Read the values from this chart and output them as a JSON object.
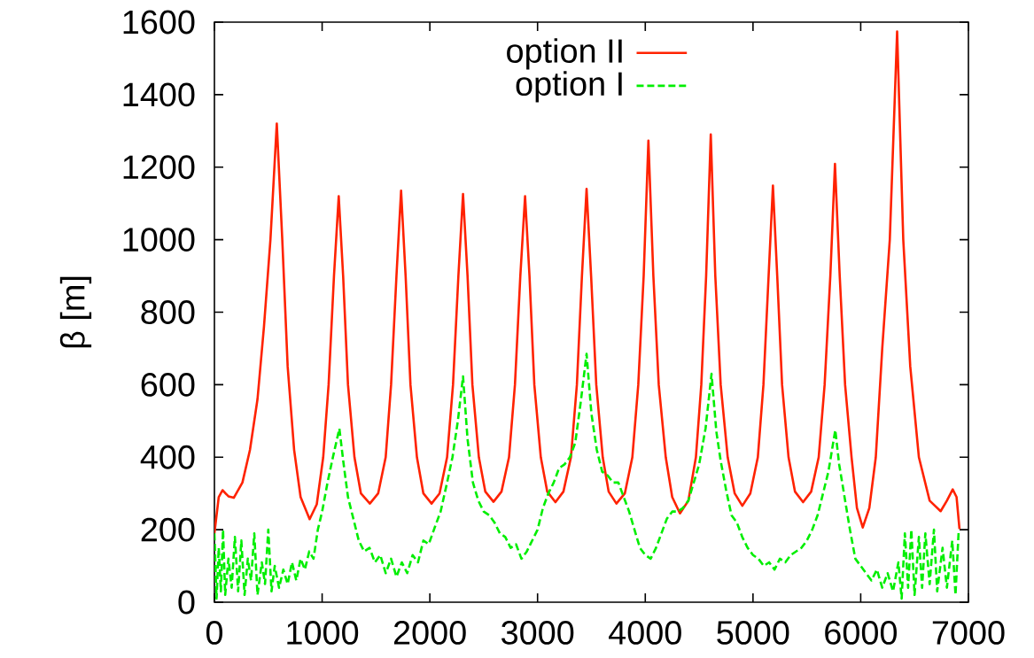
{
  "chart_data": {
    "type": "line",
    "ylabel": "β [m]",
    "xlim": [
      0,
      7000
    ],
    "ylim": [
      0,
      1600
    ],
    "xticks": [
      0,
      1000,
      2000,
      3000,
      4000,
      5000,
      6000,
      7000
    ],
    "yticks": [
      0,
      200,
      400,
      600,
      800,
      1000,
      1200,
      1400,
      1600
    ],
    "grid": false,
    "legend": "top",
    "series": [
      {
        "name": "option II",
        "color": "#ff2200",
        "line_style": "solid",
        "x": [
          0,
          40,
          75,
          130,
          180,
          260,
          330,
          400,
          460,
          520,
          579,
          630,
          680,
          740,
          800,
          884,
          950,
          1010,
          1060,
          1110,
          1154,
          1195,
          1240,
          1300,
          1360,
          1443,
          1520,
          1590,
          1640,
          1690,
          1733,
          1775,
          1820,
          1880,
          1940,
          2016,
          2090,
          2160,
          2215,
          2265,
          2308,
          2350,
          2395,
          2455,
          2515,
          2591,
          2665,
          2735,
          2790,
          2840,
          2884,
          2925,
          2970,
          3030,
          3090,
          3166,
          3240,
          3310,
          3365,
          3412,
          3455,
          3497,
          3545,
          3605,
          3660,
          3732,
          3810,
          3880,
          3935,
          3985,
          4029,
          4075,
          4125,
          4190,
          4250,
          4322,
          4400,
          4470,
          4520,
          4565,
          4608,
          4650,
          4700,
          4765,
          4830,
          4901,
          4975,
          5045,
          5097,
          5145,
          5185,
          5225,
          5270,
          5330,
          5390,
          5465,
          5540,
          5610,
          5665,
          5718,
          5761,
          5805,
          5855,
          5915,
          5965,
          6019,
          6080,
          6140,
          6200,
          6270,
          6338,
          6395,
          6460,
          6540,
          6640,
          6742,
          6800,
          6854,
          6890,
          6917
        ],
        "values": [
          190,
          290,
          309,
          292,
          288,
          330,
          420,
          560,
          760,
          1000,
          1320,
          1000,
          650,
          420,
          290,
          229,
          270,
          400,
          600,
          900,
          1120,
          900,
          600,
          400,
          300,
          272,
          300,
          400,
          600,
          900,
          1135,
          900,
          600,
          400,
          300,
          272,
          300,
          400,
          600,
          900,
          1126,
          900,
          600,
          400,
          305,
          277,
          305,
          400,
          600,
          900,
          1120,
          900,
          600,
          400,
          305,
          276,
          305,
          400,
          600,
          900,
          1140,
          900,
          600,
          400,
          305,
          272,
          300,
          400,
          600,
          900,
          1273,
          900,
          600,
          400,
          290,
          245,
          280,
          400,
          600,
          900,
          1290,
          900,
          600,
          400,
          300,
          266,
          300,
          400,
          600,
          900,
          1149,
          900,
          600,
          400,
          305,
          276,
          305,
          400,
          600,
          900,
          1209,
          900,
          600,
          400,
          260,
          206,
          260,
          400,
          700,
          1000,
          1574,
          1000,
          650,
          400,
          280,
          251,
          280,
          311,
          290,
          202
        ]
      },
      {
        "name": "option I",
        "color": "#00ee00",
        "line_style": "dashed",
        "x": [
          0,
          20,
          40,
          60,
          80,
          100,
          130,
          160,
          190,
          220,
          250,
          280,
          310,
          340,
          370,
          400,
          440,
          470,
          500,
          530,
          560,
          600,
          640,
          680,
          720,
          760,
          800,
          840,
          880,
          920,
          960,
          1000,
          1050,
          1100,
          1160,
          1200,
          1240,
          1290,
          1340,
          1390,
          1440,
          1490,
          1540,
          1590,
          1640,
          1690,
          1740,
          1790,
          1840,
          1890,
          1940,
          1990,
          2050,
          2100,
          2160,
          2210,
          2260,
          2308,
          2350,
          2400,
          2450,
          2500,
          2550,
          2600,
          2650,
          2700,
          2750,
          2800,
          2850,
          2900,
          2950,
          3000,
          3050,
          3100,
          3150,
          3200,
          3250,
          3300,
          3350,
          3400,
          3455,
          3500,
          3550,
          3600,
          3650,
          3700,
          3750,
          3800,
          3850,
          3900,
          3950,
          4000,
          4050,
          4100,
          4150,
          4200,
          4250,
          4300,
          4350,
          4400,
          4450,
          4500,
          4560,
          4615,
          4660,
          4700,
          4750,
          4800,
          4850,
          4900,
          4950,
          5000,
          5050,
          5100,
          5150,
          5200,
          5250,
          5300,
          5350,
          5400,
          5450,
          5500,
          5550,
          5600,
          5650,
          5700,
          5764,
          5800,
          5850,
          5900,
          5950,
          6000,
          6050,
          6100,
          6150,
          6200,
          6250,
          6300,
          6350,
          6380,
          6410,
          6440,
          6470,
          6500,
          6540,
          6570,
          6600,
          6640,
          6680,
          6710,
          6760,
          6800,
          6850,
          6880,
          6910
        ],
        "values": [
          190,
          10,
          150,
          30,
          200,
          20,
          120,
          40,
          180,
          30,
          170,
          20,
          120,
          60,
          190,
          20,
          110,
          50,
          200,
          30,
          100,
          40,
          90,
          50,
          110,
          60,
          120,
          90,
          140,
          120,
          200,
          250,
          330,
          400,
          479,
          380,
          290,
          230,
          170,
          140,
          150,
          110,
          130,
          80,
          120,
          70,
          110,
          80,
          130,
          110,
          170,
          160,
          210,
          250,
          330,
          400,
          500,
          623,
          450,
          330,
          280,
          250,
          240,
          220,
          190,
          180,
          150,
          160,
          120,
          140,
          170,
          200,
          260,
          300,
          330,
          370,
          380,
          400,
          440,
          550,
          685,
          520,
          420,
          360,
          350,
          330,
          330,
          290,
          250,
          200,
          150,
          130,
          120,
          150,
          190,
          230,
          250,
          250,
          260,
          280,
          330,
          380,
          480,
          630,
          470,
          390,
          310,
          240,
          220,
          180,
          150,
          130,
          120,
          100,
          110,
          90,
          120,
          110,
          130,
          140,
          150,
          170,
          200,
          240,
          300,
          360,
          475,
          380,
          290,
          200,
          120,
          100,
          80,
          60,
          90,
          40,
          80,
          30,
          110,
          10,
          190,
          40,
          200,
          20,
          180,
          40,
          190,
          50,
          200,
          30,
          150,
          40,
          170,
          20,
          200
        ]
      }
    ]
  }
}
